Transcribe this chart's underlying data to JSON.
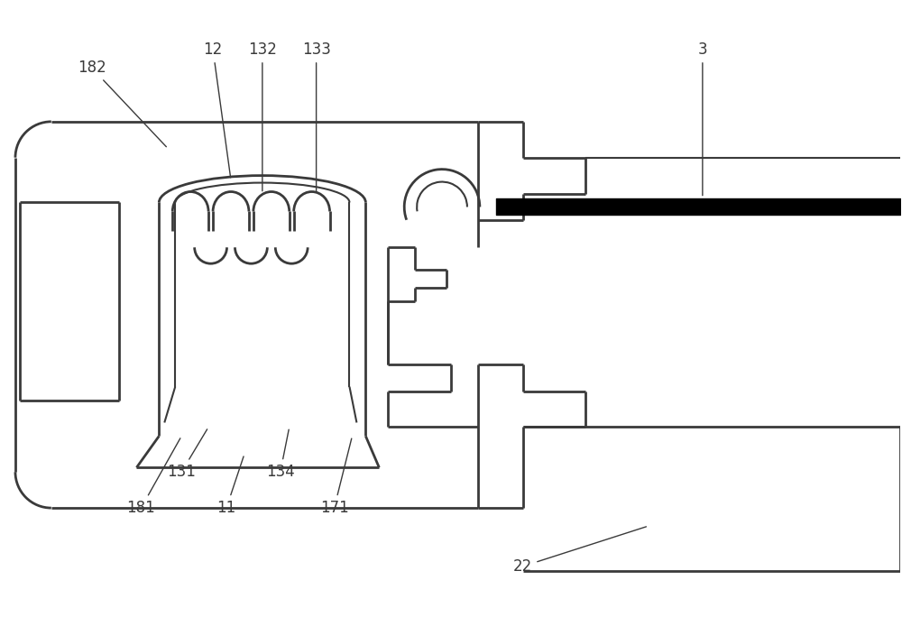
{
  "bg_color": "#ffffff",
  "lc": "#3a3a3a",
  "lw": 1.5,
  "lw2": 2.0,
  "font_size": 12,
  "annotation_color": "#3a3a3a"
}
